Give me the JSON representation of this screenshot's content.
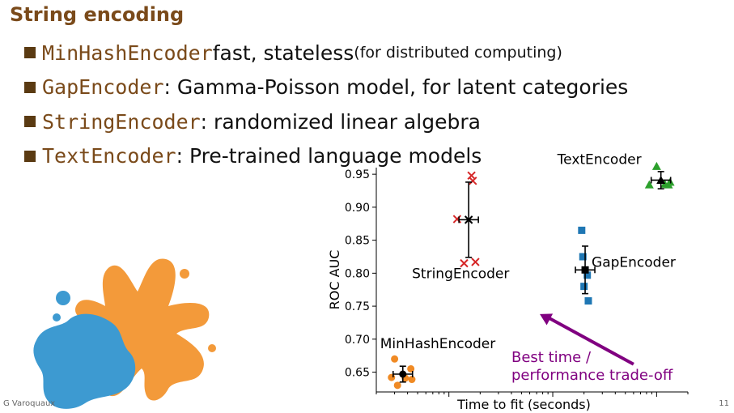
{
  "slide": {
    "title": "String encoding",
    "author": "G Varoquaux",
    "page_number": "11"
  },
  "bullets": [
    {
      "code": "MinHashEncoder",
      "text": " fast, stateless ",
      "small": "(for distributed computing)"
    },
    {
      "code": "GapEncoder",
      "text": ": Gamma-Poisson model, for latent categories",
      "small": ""
    },
    {
      "code": "StringEncoder",
      "text": ": randomized linear algebra",
      "small": ""
    },
    {
      "code": "TextEncoder",
      "text": ": Pre-trained language models",
      "small": ""
    }
  ],
  "colors": {
    "title": "#7a4a1a",
    "code": "#7a4a1a",
    "annotation": "#800080",
    "splash_orange": "#f39a3a",
    "splash_blue": "#3d9ad1"
  },
  "chart_data": {
    "type": "scatter",
    "xlabel": "Time to fit (seconds)",
    "ylabel": "ROC AUC",
    "x_scale": "log",
    "x_ticks_labeled": false,
    "ylim": [
      0.62,
      0.96
    ],
    "y_ticks": [
      "0.65",
      "0.70",
      "0.75",
      "0.80",
      "0.85",
      "0.90",
      "0.95"
    ],
    "grid": false,
    "series": [
      {
        "name": "MinHashEncoder",
        "color": "#f08a24",
        "marker": "circle",
        "points": [
          [
            0.3,
            0.67
          ],
          [
            0.28,
            0.642
          ],
          [
            0.32,
            0.63
          ],
          [
            0.38,
            0.641
          ],
          [
            0.43,
            0.655
          ],
          [
            0.44,
            0.639
          ]
        ],
        "mean": {
          "x": 0.36,
          "y": 0.647,
          "y_err": 0.012
        }
      },
      {
        "name": "StringEncoder",
        "color": "#d62728",
        "marker": "x",
        "points": [
          [
            1.2,
            0.882
          ],
          [
            1.4,
            0.815
          ],
          [
            1.65,
            0.948
          ],
          [
            1.7,
            0.94
          ],
          [
            1.8,
            0.817
          ]
        ],
        "mean": {
          "x": 1.55,
          "y": 0.881,
          "y_err": 0.057
        }
      },
      {
        "name": "GapEncoder",
        "color": "#1f77b4",
        "marker": "square",
        "points": [
          [
            19,
            0.865
          ],
          [
            19.5,
            0.825
          ],
          [
            20,
            0.78
          ],
          [
            21.5,
            0.797
          ],
          [
            22,
            0.758
          ]
        ],
        "mean": {
          "x": 20.5,
          "y": 0.805,
          "y_err": 0.036
        }
      },
      {
        "name": "TextEncoder",
        "color": "#2ca02c",
        "marker": "triangle",
        "points": [
          [
            100,
            0.962
          ],
          [
            85,
            0.934
          ],
          [
            120,
            0.935
          ],
          [
            135,
            0.938
          ],
          [
            130,
            0.934
          ]
        ],
        "mean": {
          "x": 110,
          "y": 0.941,
          "y_err": 0.013
        }
      }
    ],
    "annotation": {
      "text_line1": "Best time /",
      "text_line2": "performance trade-off",
      "arrow_from": {
        "x": 60,
        "y": 0.662
      },
      "arrow_to": {
        "x": 7.5,
        "y": 0.738
      }
    }
  }
}
